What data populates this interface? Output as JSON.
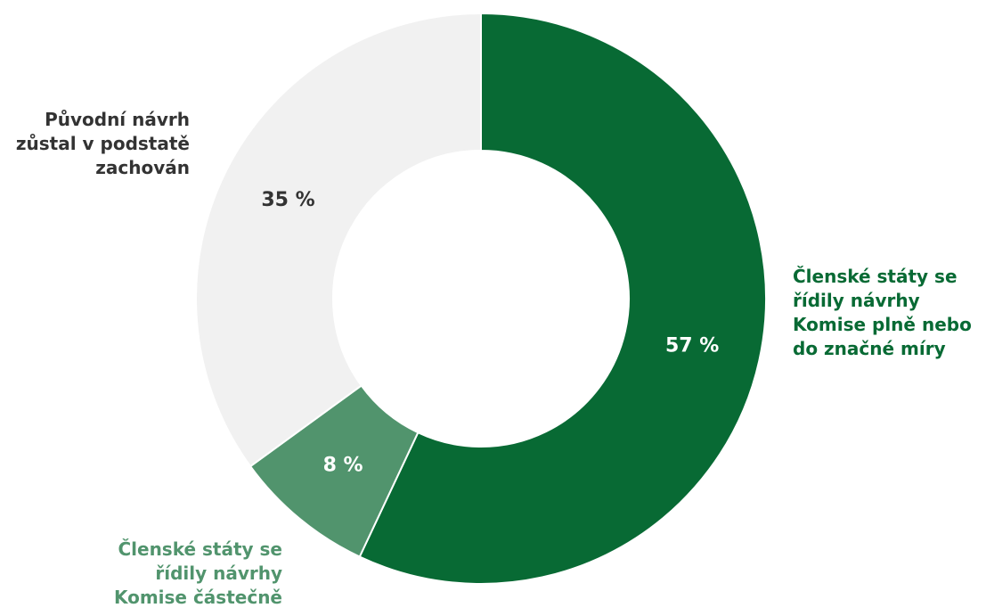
{
  "chart_data": {
    "type": "pie",
    "variant": "donut",
    "slices": [
      {
        "value": 57,
        "value_label": "57 %",
        "label_lines": [
          "Členské státy se",
          "řídily návrhy",
          "Komise plně nebo",
          "do značné míry"
        ],
        "color": "#086a34",
        "label_color": "#086a34",
        "value_label_color": "#ffffff"
      },
      {
        "value": 8,
        "value_label": "8 %",
        "label_lines": [
          "Členské státy se",
          "řídily návrhy",
          "Komise částečně"
        ],
        "color": "#51946d",
        "label_color": "#51946d",
        "value_label_color": "#ffffff"
      },
      {
        "value": 35,
        "value_label": "35 %",
        "label_lines": [
          "Původní návrh",
          "zůstal v podstatě",
          "zachován"
        ],
        "color": "#f1f1f1",
        "label_color": "#333333",
        "value_label_color": "#333333"
      }
    ],
    "start_angle_deg": 0,
    "direction": "clockwise"
  }
}
